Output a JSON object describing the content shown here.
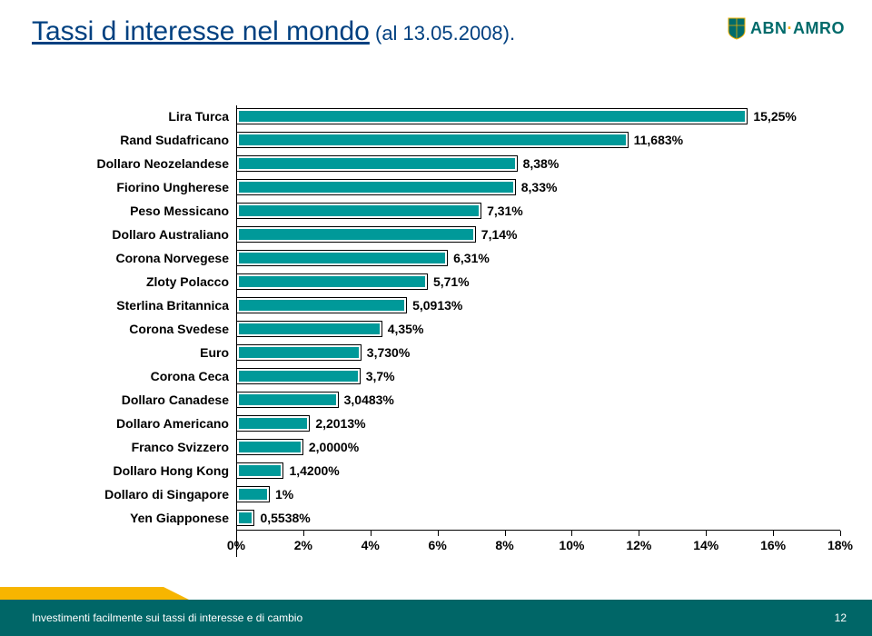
{
  "title_main": "Tassi d interesse nel mondo",
  "title_sub": " (al 13.05.2008).",
  "logo_text_a": "ABN",
  "logo_text_b": "AMRO",
  "chart": {
    "type": "bar-horizontal",
    "x_min": 0,
    "x_max": 18,
    "x_tick_step": 2,
    "bar_fill": "#009999",
    "bar_border": "#000000",
    "background": "#ffffff",
    "label_fontsize": 14,
    "categories": [
      {
        "label": "Lira Turca",
        "value": 15.25,
        "value_label": "15,25%"
      },
      {
        "label": "Rand Sudafricano",
        "value": 11.683,
        "value_label": "11,683%"
      },
      {
        "label": "Dollaro Neozelandese",
        "value": 8.38,
        "value_label": "8,38%"
      },
      {
        "label": "Fiorino Ungherese",
        "value": 8.33,
        "value_label": "8,33%"
      },
      {
        "label": "Peso Messicano",
        "value": 7.31,
        "value_label": "7,31%"
      },
      {
        "label": "Dollaro Australiano",
        "value": 7.14,
        "value_label": "7,14%"
      },
      {
        "label": "Corona Norvegese",
        "value": 6.31,
        "value_label": "6,31%"
      },
      {
        "label": "Zloty Polacco",
        "value": 5.71,
        "value_label": "5,71%"
      },
      {
        "label": "Sterlina Britannica",
        "value": 5.0913,
        "value_label": "5,0913%"
      },
      {
        "label": "Corona Svedese",
        "value": 4.35,
        "value_label": "4,35%"
      },
      {
        "label": "Euro",
        "value": 3.73,
        "value_label": "3,730%"
      },
      {
        "label": "Corona Ceca",
        "value": 3.7,
        "value_label": "3,7%"
      },
      {
        "label": "Dollaro Canadese",
        "value": 3.0483,
        "value_label": "3,0483%"
      },
      {
        "label": "Dollaro Americano",
        "value": 2.2013,
        "value_label": "2,2013%"
      },
      {
        "label": "Franco Svizzero",
        "value": 2.0,
        "value_label": "2,0000%"
      },
      {
        "label": "Dollaro Hong Kong",
        "value": 1.42,
        "value_label": "1,4200%"
      },
      {
        "label": "Dollaro di Singapore",
        "value": 1.0,
        "value_label": "1%"
      },
      {
        "label": "Yen Giapponese",
        "value": 0.5538,
        "value_label": "0,5538%"
      }
    ],
    "x_ticks": [
      {
        "v": 0,
        "label": "0%"
      },
      {
        "v": 2,
        "label": "2%"
      },
      {
        "v": 4,
        "label": "4%"
      },
      {
        "v": 6,
        "label": "6%"
      },
      {
        "v": 8,
        "label": "8%"
      },
      {
        "v": 10,
        "label": "10%"
      },
      {
        "v": 12,
        "label": "12%"
      },
      {
        "v": 14,
        "label": "14%"
      },
      {
        "v": 16,
        "label": "16%"
      },
      {
        "v": 18,
        "label": "18%"
      }
    ]
  },
  "footer_text": "Investimenti facilmente sui tassi di interesse e di cambio",
  "footer_page": "12",
  "colors": {
    "title": "#004080",
    "teal": "#006667",
    "yellow": "#f7b500",
    "bar": "#009999"
  }
}
